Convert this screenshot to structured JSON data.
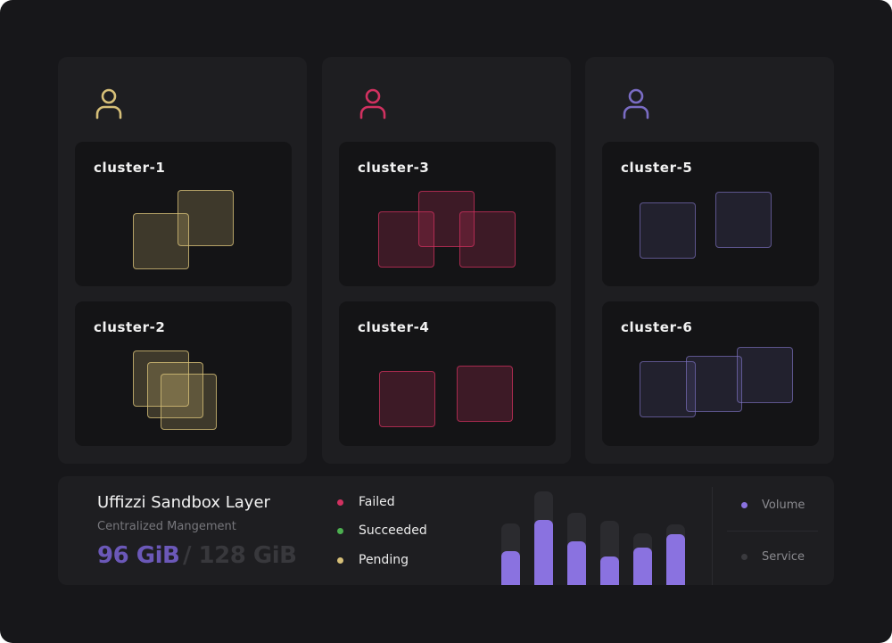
{
  "columns": [
    {
      "accent": "#d6bf78",
      "icon": "user-icon",
      "clusters": [
        {
          "name": "cluster-1"
        },
        {
          "name": "cluster-2"
        }
      ]
    },
    {
      "accent": "#d13160",
      "icon": "user-icon",
      "clusters": [
        {
          "name": "cluster-3"
        },
        {
          "name": "cluster-4"
        }
      ]
    },
    {
      "accent": "#7a6cc4",
      "icon": "user-icon",
      "clusters": [
        {
          "name": "cluster-5"
        },
        {
          "name": "cluster-6"
        }
      ]
    }
  ],
  "sandbox": {
    "title": "Uffizzi Sandbox Layer",
    "subtitle": "Centralized Mangement",
    "used": "96 GiB",
    "total": "/ 128 GiB"
  },
  "statuses": [
    {
      "label": "Failed",
      "color": "#d13160"
    },
    {
      "label": "Succeeded",
      "color": "#4caf50"
    },
    {
      "label": "Pending",
      "color": "#d6bf78"
    }
  ],
  "chart_data": {
    "type": "bar",
    "series": [
      {
        "name": "Volume",
        "values": [
          38,
          73,
          49,
          32,
          42,
          57
        ]
      },
      {
        "name": "Service",
        "values": [
          69,
          105,
          81,
          72,
          58,
          68
        ]
      }
    ]
  },
  "legend": [
    {
      "label": "Volume",
      "color": "#8a72e0"
    },
    {
      "label": "Service",
      "color": "#3a3a3e"
    }
  ]
}
